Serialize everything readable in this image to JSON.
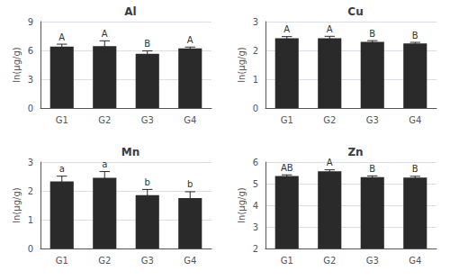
{
  "chart_data": [
    {
      "type": "bar",
      "title": "Al",
      "ylabel": "ln(μg/g)",
      "ylim": [
        0,
        9
      ],
      "yticks": [
        0,
        3,
        6,
        9
      ],
      "categories": [
        "G1",
        "G2",
        "G3",
        "G4"
      ],
      "values": [
        6.4,
        6.45,
        5.65,
        6.2
      ],
      "errors": [
        0.25,
        0.55,
        0.3,
        0.15
      ],
      "annotations": [
        "A",
        "A",
        "B",
        "A"
      ],
      "color": "#2a2a2a"
    },
    {
      "type": "bar",
      "title": "Cu",
      "ylabel": "ln(μg/g)",
      "ylim": [
        0,
        3
      ],
      "yticks": [
        0,
        1,
        2,
        3
      ],
      "categories": [
        "G1",
        "G2",
        "G3",
        "G4"
      ],
      "values": [
        2.42,
        2.42,
        2.3,
        2.24
      ],
      "errors": [
        0.06,
        0.07,
        0.04,
        0.04
      ],
      "annotations": [
        "A",
        "A",
        "B",
        "B"
      ],
      "color": "#2a2a2a"
    },
    {
      "type": "bar",
      "title": "Mn",
      "ylabel": "ln(μg/g)",
      "ylim": [
        0,
        3
      ],
      "yticks": [
        0,
        1,
        2,
        3
      ],
      "categories": [
        "G1",
        "G2",
        "G3",
        "G4"
      ],
      "values": [
        2.33,
        2.45,
        1.85,
        1.75
      ],
      "errors": [
        0.18,
        0.22,
        0.2,
        0.22
      ],
      "annotations": [
        "a",
        "a",
        "b",
        "b"
      ],
      "color": "#2a2a2a"
    },
    {
      "type": "bar",
      "title": "Zn",
      "ylabel": "ln(μg/g)",
      "ylim": [
        2,
        6
      ],
      "yticks": [
        2,
        3,
        4,
        5,
        6
      ],
      "categories": [
        "G1",
        "G2",
        "G3",
        "G4"
      ],
      "values": [
        5.35,
        5.57,
        5.3,
        5.28
      ],
      "errors": [
        0.06,
        0.07,
        0.06,
        0.06
      ],
      "annotations": [
        "AB",
        "A",
        "B",
        "B"
      ],
      "color": "#2a2a2a"
    }
  ]
}
